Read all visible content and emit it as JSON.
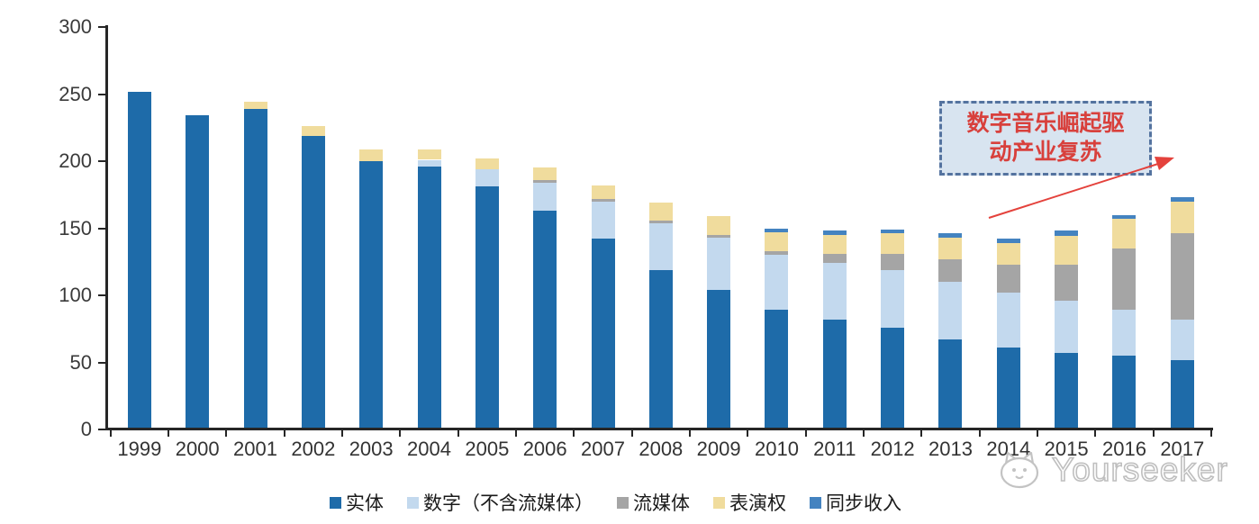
{
  "chart_data": {
    "type": "bar",
    "stacked": true,
    "title": "",
    "xlabel": "",
    "ylabel": "",
    "categories": [
      "1999",
      "2000",
      "2001",
      "2002",
      "2003",
      "2004",
      "2005",
      "2006",
      "2007",
      "2008",
      "2009",
      "2010",
      "2011",
      "2012",
      "2013",
      "2014",
      "2015",
      "2016",
      "2017"
    ],
    "series": [
      {
        "key": "physical",
        "name": "实体",
        "color": "#1e6ba9",
        "values": [
          252,
          234,
          239,
          219,
          200,
          196,
          181,
          163,
          142,
          119,
          104,
          89,
          82,
          76,
          67,
          61,
          57,
          55,
          52
        ]
      },
      {
        "key": "digital-excl-streaming",
        "name": "数字（不含流媒体）",
        "color": "#c3d9ee",
        "values": [
          0,
          0,
          0,
          0,
          0,
          5,
          13,
          21,
          28,
          35,
          39,
          41,
          42,
          43,
          43,
          41,
          39,
          34,
          30
        ]
      },
      {
        "key": "streaming",
        "name": "流媒体",
        "color": "#a5a5a5",
        "values": [
          0,
          0,
          0,
          0,
          0,
          0,
          0,
          2,
          2,
          2,
          2,
          3,
          7,
          12,
          17,
          21,
          27,
          46,
          64
        ]
      },
      {
        "key": "performance-rights",
        "name": "表演权",
        "color": "#f0dc9d",
        "values": [
          0,
          0,
          5,
          7,
          9,
          8,
          8,
          9,
          10,
          13,
          14,
          14,
          14,
          15,
          16,
          16,
          21,
          22,
          24
        ]
      },
      {
        "key": "sync-revenue",
        "name": "同步收入",
        "color": "#4483c0",
        "values": [
          0,
          0,
          0,
          0,
          0,
          0,
          0,
          0,
          0,
          0,
          0,
          3,
          3,
          3,
          3,
          3,
          4,
          3,
          3
        ]
      }
    ],
    "ylim": [
      0,
      300
    ],
    "yticks": [
      0,
      50,
      100,
      150,
      200,
      250,
      300
    ],
    "legend_position": "bottom",
    "grid": false
  },
  "annotation": {
    "line1": "数字音乐崛起驱",
    "line2": "动产业复苏",
    "text_color": "#d8403c",
    "box_fill": "#d8e4f0",
    "box_border": "#54739f",
    "arrow_color": "#e4423c"
  },
  "watermark": {
    "brand": "Yourseeker"
  }
}
